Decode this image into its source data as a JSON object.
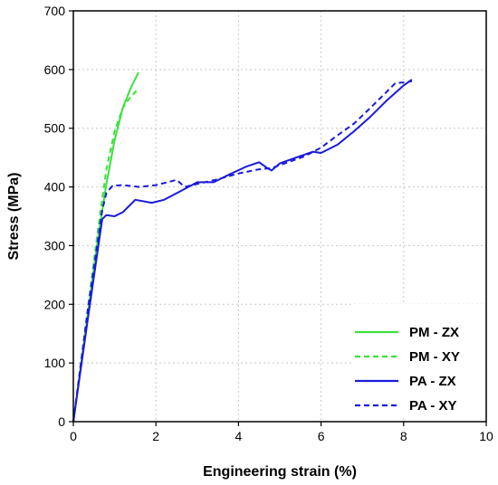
{
  "chart_data": {
    "type": "line",
    "xlabel": "Engineering strain (%)",
    "ylabel": "Stress (MPa)",
    "xlim": [
      0,
      10
    ],
    "ylim": [
      0,
      700
    ],
    "xticks": [
      0,
      2,
      4,
      6,
      8,
      10
    ],
    "yticks": [
      0,
      100,
      200,
      300,
      400,
      500,
      600,
      700
    ],
    "grid": "dashed",
    "legend_position": "bottom-right",
    "series": [
      {
        "name": "PM - ZX",
        "color": "#3de03d",
        "style": "solid",
        "x": [
          0,
          0.2,
          0.4,
          0.6,
          0.8,
          1.0,
          1.2,
          1.4,
          1.58
        ],
        "y": [
          0,
          105,
          210,
          315,
          405,
          480,
          535,
          570,
          595
        ]
      },
      {
        "name": "PM - XY",
        "color": "#3de03d",
        "style": "dashed",
        "x": [
          0,
          0.2,
          0.4,
          0.6,
          0.8,
          1.0,
          1.2,
          1.4,
          1.55
        ],
        "y": [
          0,
          110,
          220,
          330,
          430,
          495,
          535,
          555,
          565
        ]
      },
      {
        "name": "PA - ZX",
        "color": "#1a1adc",
        "style": "solid",
        "x": [
          0,
          0.35,
          0.7,
          0.8,
          1.0,
          1.2,
          1.5,
          1.9,
          2.2,
          2.6,
          3.0,
          3.4,
          3.8,
          4.2,
          4.5,
          4.7,
          4.8,
          5.0,
          5.4,
          5.8,
          6.0,
          6.4,
          6.8,
          7.2,
          7.6,
          8.0,
          8.2
        ],
        "y": [
          0,
          175,
          345,
          352,
          350,
          357,
          378,
          373,
          378,
          393,
          408,
          408,
          422,
          435,
          442,
          432,
          428,
          440,
          450,
          460,
          458,
          472,
          495,
          520,
          548,
          573,
          583
        ]
      },
      {
        "name": "PA - XY",
        "color": "#1a1adc",
        "style": "dashed",
        "x": [
          0,
          0.35,
          0.7,
          0.8,
          0.95,
          1.2,
          1.6,
          2.0,
          2.5,
          2.7,
          3.0,
          3.5,
          4.0,
          4.5,
          4.8,
          5.2,
          5.6,
          6.0,
          6.4,
          6.8,
          7.2,
          7.6,
          7.8,
          8.0,
          8.2
        ],
        "y": [
          0,
          190,
          360,
          390,
          402,
          403,
          400,
          403,
          412,
          400,
          405,
          413,
          423,
          430,
          432,
          442,
          452,
          467,
          488,
          508,
          535,
          563,
          577,
          578,
          580
        ]
      }
    ]
  }
}
